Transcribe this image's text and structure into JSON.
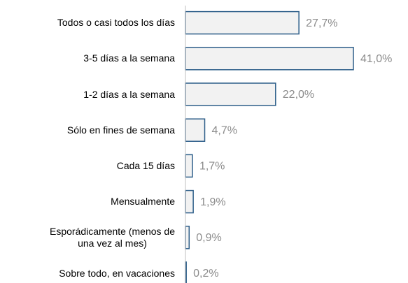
{
  "chart_data": {
    "type": "bar",
    "orientation": "horizontal",
    "categories": [
      "Todos o casi todos los días",
      "3-5 días a la semana",
      "1-2 días a la semana",
      "Sólo en fines de semana",
      "Cada 15 días",
      "Mensualmente",
      "Esporádicamente (menos de\nuna vez al mes)",
      "Sobre todo, en vacaciones"
    ],
    "values": [
      27.7,
      41.0,
      22.0,
      4.7,
      1.7,
      1.9,
      0.9,
      0.2
    ],
    "value_labels": [
      "27,7%",
      "41,0%",
      "22,0%",
      "4,7%",
      "1,7%",
      "1,9%",
      "0,9%",
      "0,2%"
    ],
    "color": "#f2f2f2",
    "edge_color": "#2e5f8a"
  }
}
